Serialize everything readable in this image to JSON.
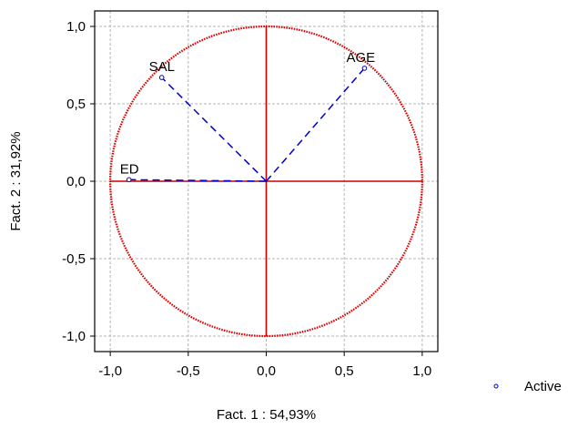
{
  "chart_data": {
    "type": "scatter",
    "subtype": "correlation-circle",
    "xlabel": "Fact. 1  : 54,93%",
    "ylabel": "Fact. 2  : 31,92%",
    "xlim": [
      -1.1,
      1.1
    ],
    "ylim": [
      -1.1,
      1.1
    ],
    "x_ticks": [
      -1.0,
      -0.5,
      0.0,
      0.5,
      1.0
    ],
    "x_tick_labels": [
      "-1,0",
      "-0,5",
      "0,0",
      "0,5",
      "1,0"
    ],
    "y_ticks": [
      1.0,
      0.5,
      0.0,
      -0.5,
      -1.0
    ],
    "y_tick_labels": [
      "1,0",
      "0,5",
      "0,0",
      "-0,5",
      "-1,0"
    ],
    "grid": true,
    "unit_circle": true,
    "legend_position": "bottom-right",
    "series": [
      {
        "name": "Active",
        "points": [
          {
            "label": "SAL",
            "x": -0.67,
            "y": 0.67
          },
          {
            "label": "AGE",
            "x": 0.63,
            "y": 0.73
          },
          {
            "label": "ED",
            "x": -0.88,
            "y": 0.01
          }
        ]
      }
    ],
    "colors": {
      "circle": "#dd0000",
      "axes_cross": "#cc0000",
      "vectors": "#0000cc",
      "points": "#0000cc",
      "grid": "#b4b4b4"
    }
  }
}
